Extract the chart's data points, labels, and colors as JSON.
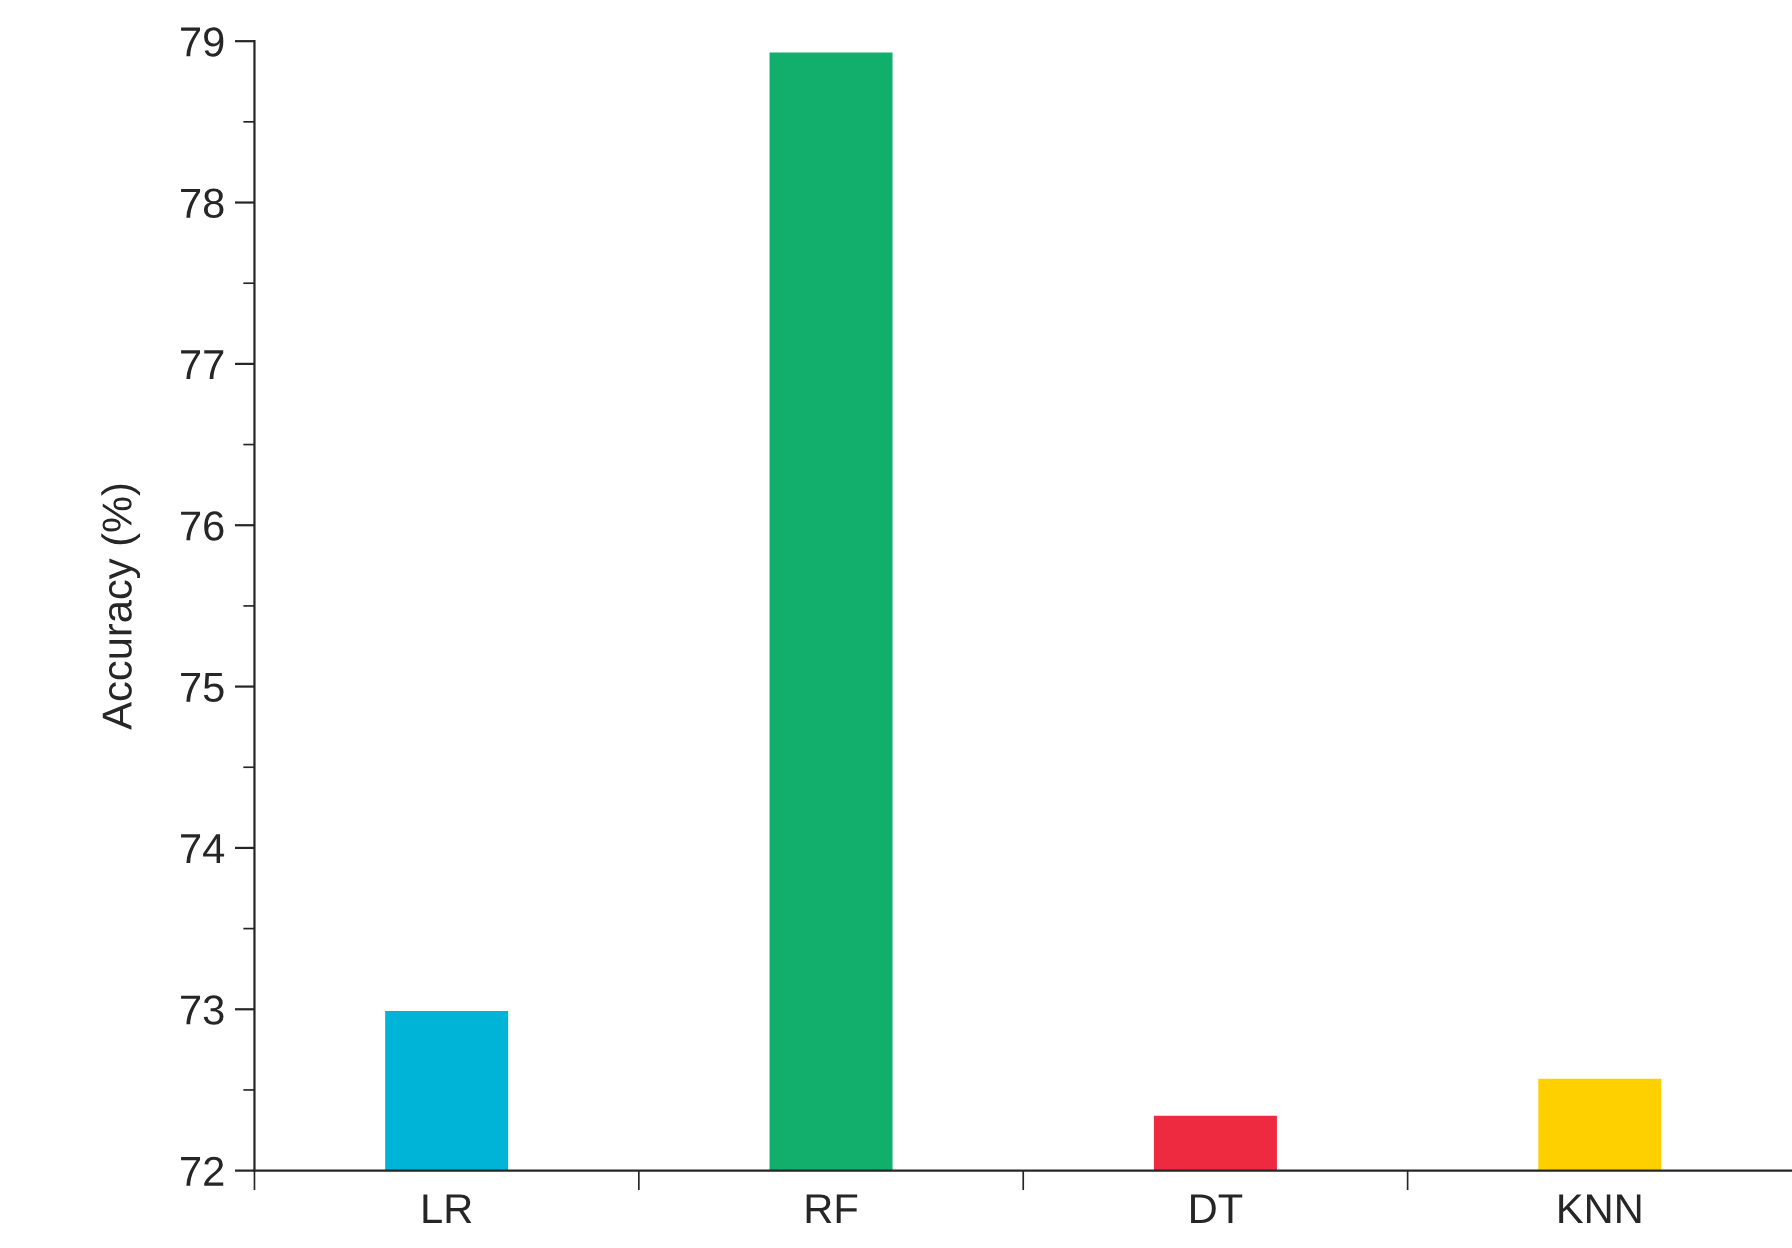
{
  "chart_data": {
    "type": "bar",
    "ylabel": "Accuracy (%)",
    "categories": [
      "LR",
      "RF",
      "DT",
      "KNN"
    ],
    "values": [
      72.99,
      78.93,
      72.34,
      72.57
    ],
    "colors": [
      "#00b4d8",
      "#12ae6b",
      "#ee2a40",
      "#ffd000"
    ],
    "ylim": [
      72,
      79
    ],
    "yticks": [
      72,
      73,
      74,
      75,
      76,
      77,
      78,
      79
    ],
    "grid": false
  }
}
